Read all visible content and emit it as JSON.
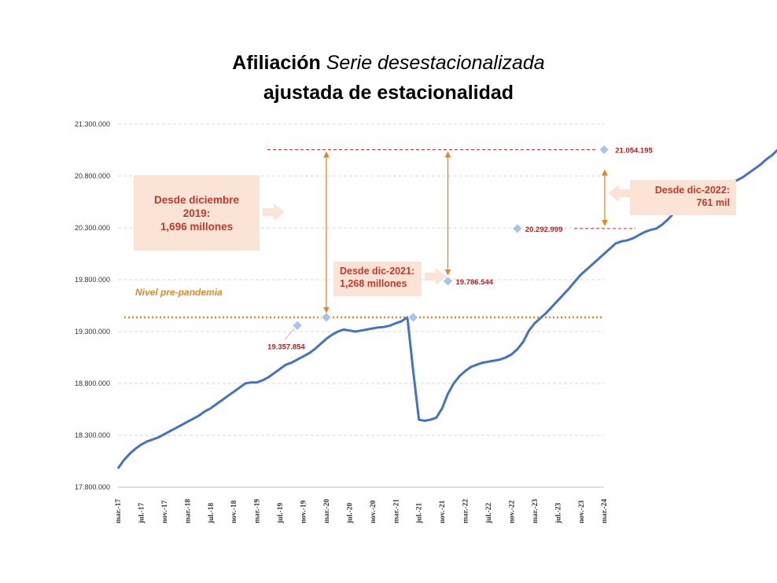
{
  "title": {
    "bold": "Afiliación",
    "italic": "Serie desestacionalizada",
    "line2": "ajustada de estacionalidad"
  },
  "colors": {
    "line": "#4472c4",
    "marker": "#a9c4eb",
    "prepandemic": "#e0882a",
    "reference": "#c0392b",
    "box_bg": "#fbe4d5",
    "box_text": "#c0392b"
  },
  "annotations": {
    "box_2019": {
      "l1": "Desde diciembre",
      "l2": "2019:",
      "l3": "1,696 millones"
    },
    "box_2021": {
      "l1": "Desde dic-2021:",
      "l2": "1,268 millones"
    },
    "box_2022": {
      "l1": "Desde dic-2022:",
      "l2": "761 mil"
    },
    "prepandemic_label": "Nivel pre-pandemia"
  },
  "chart_data": {
    "type": "line",
    "title": "Afiliación Serie desestacionalizada ajustada de estacionalidad",
    "xlabel": "",
    "ylabel": "",
    "ylim": [
      17800000,
      21300000
    ],
    "y_ticks": [
      "17.800.000",
      "18.300.000",
      "18.800.000",
      "19.300.000",
      "19.800.000",
      "20.300.000",
      "20.800.000",
      "21.300.000"
    ],
    "y_tick_values": [
      17800000,
      18300000,
      18800000,
      19300000,
      19800000,
      20300000,
      20800000,
      21300000
    ],
    "x_ticks": [
      "mar.-17",
      "jul.-17",
      "nov.-17",
      "mar.-18",
      "jul.-18",
      "nov.-18",
      "mar.-19",
      "jul.-19",
      "nov.-19",
      "mar.-20",
      "jul.-20",
      "nov.-20",
      "mar.-21",
      "jul.-21",
      "nov.-21",
      "mar.-22",
      "jul.-22",
      "nov.-22",
      "mar.-23",
      "jul.-23",
      "nov.-23",
      "mar.-24"
    ],
    "grid": true,
    "series": [
      {
        "values": [
          17980000,
          18060000,
          18120000,
          18170000,
          18210000,
          18240000,
          18260000,
          18280000,
          18310000,
          18340000,
          18370000,
          18400000,
          18430000,
          18460000,
          18490000,
          18530000,
          18560000,
          18600000,
          18640000,
          18680000,
          18720000,
          18760000,
          18800000,
          18810000,
          18810000,
          18830000,
          18860000,
          18900000,
          18940000,
          18980000,
          19000000,
          19030000,
          19060000,
          19090000,
          19130000,
          19180000,
          19230000,
          19270000,
          19300000,
          19320000,
          19310000,
          19300000,
          19310000,
          19320000,
          19330000,
          19340000,
          19345000,
          19357854,
          19380000,
          19400000,
          19437000,
          18920000,
          18450000,
          18440000,
          18450000,
          18470000,
          18560000,
          18700000,
          18800000,
          18870000,
          18920000,
          18960000,
          18980000,
          19000000,
          19010000,
          19020000,
          19030000,
          19050000,
          19080000,
          19130000,
          19200000,
          19310000,
          19380000,
          19430000,
          19480000,
          19540000,
          19600000,
          19660000,
          19720000,
          19786544,
          19850000,
          19900000,
          19950000,
          20000000,
          20050000,
          20100000,
          20150000,
          20170000,
          20180000,
          20200000,
          20230000,
          20260000,
          20280000,
          20292999,
          20330000,
          20380000,
          20440000,
          20510000,
          20570000,
          20610000,
          20630000,
          20650000,
          20660000,
          20680000,
          20700000,
          20720000,
          20740000,
          20760000,
          20790000,
          20830000,
          20870000,
          20910000,
          20960000,
          21000000,
          21054195
        ]
      }
    ],
    "highlighted_points": [
      {
        "label": "19.357.854",
        "value": 19357854,
        "month_index": 31
      },
      {
        "label": "",
        "value": 19437000,
        "month_index": 36
      },
      {
        "label": "",
        "value": 19437000,
        "month_index": 51
      },
      {
        "label": "19.786.544",
        "value": 19786544,
        "month_index": 57
      },
      {
        "label": "20.292.999",
        "value": 20292999,
        "month_index": 69
      },
      {
        "label": "21.054.195",
        "value": 21054195,
        "month_index": 84
      }
    ],
    "prepandemic_level": 19437000
  }
}
